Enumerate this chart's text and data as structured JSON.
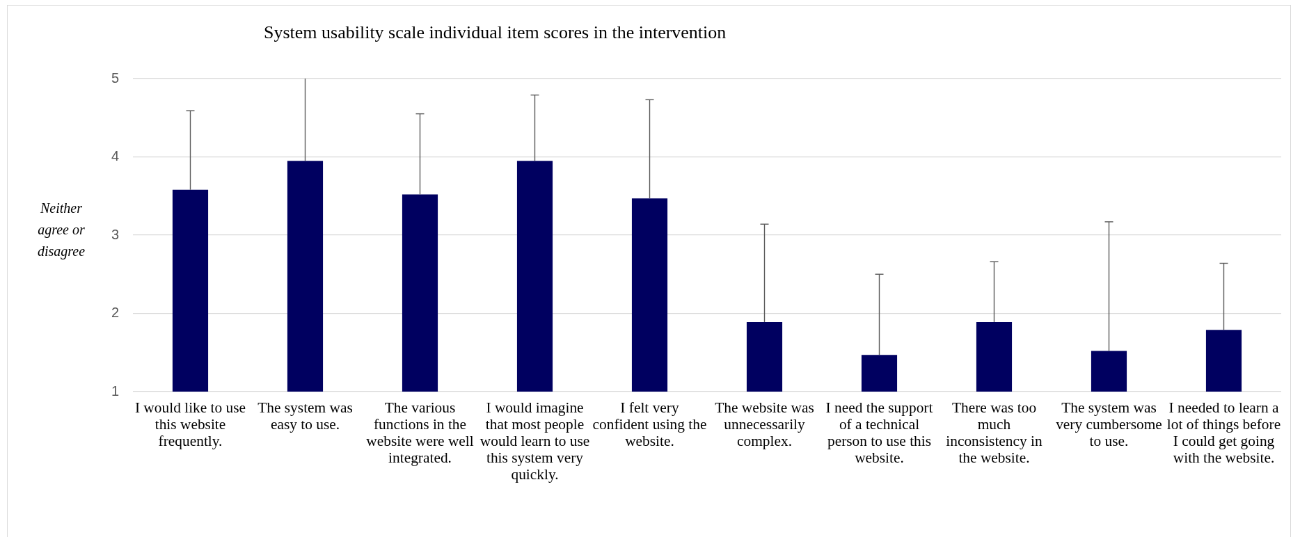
{
  "chart_data": {
    "type": "bar",
    "title": "System usability scale individual item scores in the intervention",
    "ylabel": "Neither agree or disagree",
    "categories": [
      "I would like to use this website frequently.",
      "The system was easy to use.",
      "The various functions in the website were well integrated.",
      "I would imagine that most people would learn to use this system very quickly.",
      "I felt very confident using the website.",
      "The website was unnecessarily complex.",
      "I need the support of a technical person to use this website.",
      "There was too much inconsistency in the website.",
      "The system was very cumbersome to use.",
      "I needed to learn a lot of things before I could get going with the website."
    ],
    "values": [
      3.58,
      3.95,
      3.52,
      3.95,
      3.47,
      1.89,
      1.47,
      1.89,
      1.52,
      1.79
    ],
    "color": "#000060",
    "errors": [
      [
        3.58,
        4.59
      ],
      [
        3.95,
        5
      ],
      [
        3.52,
        4.55
      ],
      [
        3.95,
        4.79
      ],
      [
        3.47,
        4.73
      ],
      [
        1.89,
        3.14
      ],
      [
        1.47,
        2.5
      ],
      [
        1.89,
        2.66
      ],
      [
        1.52,
        3.17
      ],
      [
        1.79,
        2.64
      ]
    ],
    "ylim": [
      1,
      5
    ],
    "yticks": [
      1,
      2,
      3,
      4,
      5
    ],
    "grid": "y"
  }
}
